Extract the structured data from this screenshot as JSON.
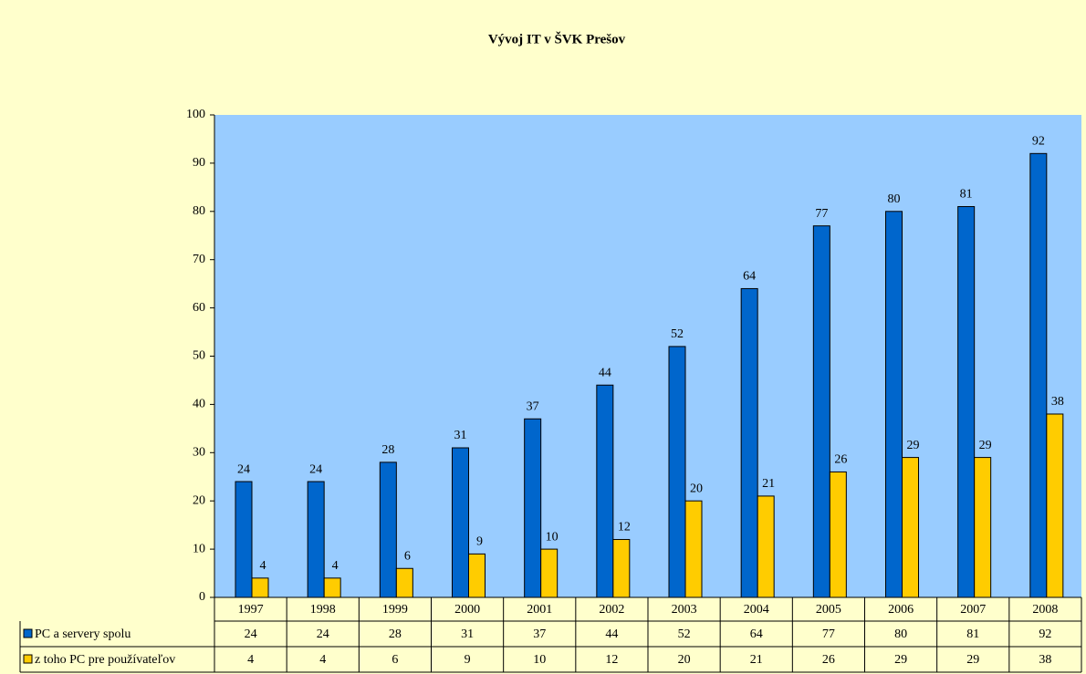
{
  "chart_data": {
    "type": "bar",
    "title": "Vývoj IT v ŠVK Prešov",
    "categories": [
      "1997",
      "1998",
      "1999",
      "2000",
      "2001",
      "2002",
      "2003",
      "2004",
      "2005",
      "2006",
      "2007",
      "2008"
    ],
    "series": [
      {
        "name": "PC a servery spolu",
        "color": "#0066cc",
        "values": [
          24,
          24,
          28,
          31,
          37,
          44,
          52,
          64,
          77,
          80,
          81,
          92
        ]
      },
      {
        "name": "z toho PC pre používateľov",
        "color": "#ffcc00",
        "values": [
          4,
          4,
          6,
          9,
          10,
          12,
          20,
          21,
          26,
          29,
          29,
          38
        ]
      }
    ],
    "ylim": [
      0,
      100
    ],
    "yticks": [
      0,
      10,
      20,
      30,
      40,
      50,
      60,
      70,
      80,
      90,
      100
    ],
    "grid": false
  }
}
